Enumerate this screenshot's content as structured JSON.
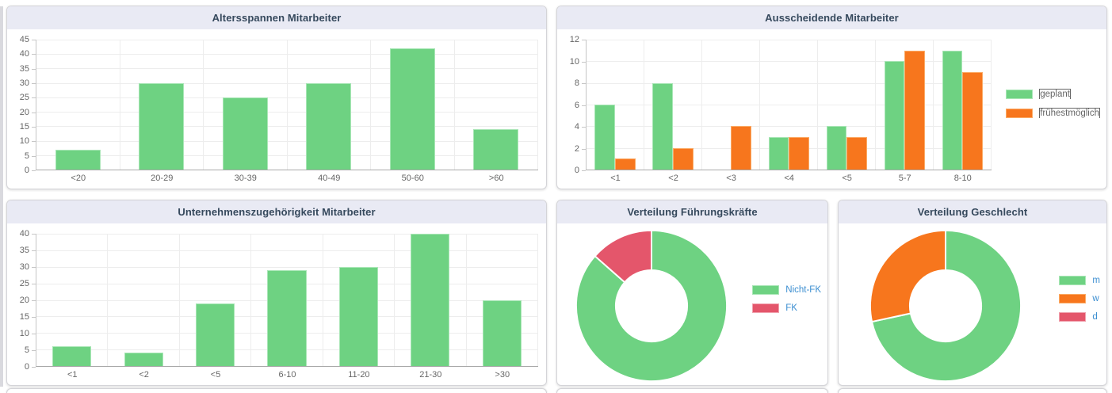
{
  "chart_data": [
    {
      "id": "age",
      "type": "bar",
      "title": "Altersspannen Mitarbeiter",
      "categories": [
        "<20",
        "20-29",
        "30-39",
        "40-49",
        "50-60",
        ">60"
      ],
      "values": [
        7,
        30,
        25,
        30,
        42,
        14
      ],
      "ylim": [
        0,
        45
      ],
      "yticks": [
        0,
        5,
        10,
        15,
        20,
        25,
        30,
        35,
        40,
        45
      ],
      "bar_color": "#6ed282",
      "grid": true,
      "legend": "none",
      "xlabel": "",
      "ylabel": ""
    },
    {
      "id": "leaving",
      "type": "bar",
      "title": "Ausscheidende Mitarbeiter",
      "categories": [
        "<1",
        "<2",
        "<3",
        "<4",
        "<5",
        "5-7",
        "8-10"
      ],
      "series": [
        {
          "name": "geplant",
          "color": "#6ed282",
          "values": [
            6,
            8,
            0,
            3,
            4,
            10,
            11
          ]
        },
        {
          "name": "frühestmöglich",
          "color": "#f7761d",
          "values": [
            1,
            2,
            4,
            3,
            3,
            11,
            9
          ]
        }
      ],
      "ylim": [
        0,
        12
      ],
      "yticks": [
        0,
        2,
        4,
        6,
        8,
        10,
        12
      ],
      "grid": true,
      "legend": "right",
      "xlabel": "",
      "ylabel": ""
    },
    {
      "id": "tenure",
      "type": "bar",
      "title": "Unternehmenszugehörigkeit Mitarbeiter",
      "categories": [
        "<1",
        "<2",
        "<5",
        "6-10",
        "11-20",
        "21-30",
        ">30"
      ],
      "values": [
        6,
        4,
        19,
        29,
        30,
        40,
        20
      ],
      "ylim": [
        0,
        40
      ],
      "yticks": [
        0,
        5,
        10,
        15,
        20,
        25,
        30,
        35,
        40
      ],
      "bar_color": "#6ed282",
      "grid": true,
      "legend": "none",
      "xlabel": "",
      "ylabel": ""
    },
    {
      "id": "leadership",
      "type": "pie",
      "donut": true,
      "title": "Verteilung Führungskräfte",
      "labels": [
        "Nicht-FK",
        "FK"
      ],
      "values": [
        128,
        20
      ],
      "colors": [
        "#6ed282",
        "#e4566b"
      ],
      "legend": "right"
    },
    {
      "id": "gender",
      "type": "pie",
      "donut": true,
      "title": "Verteilung Geschlecht",
      "labels": [
        "m",
        "w",
        "d"
      ],
      "values": [
        106,
        42,
        0
      ],
      "colors": [
        "#6ed282",
        "#f7761d",
        "#e4566b"
      ],
      "legend": "right"
    }
  ],
  "style": {
    "header_bg": "#e9eaf4",
    "title_color": "#36495d",
    "tick_color": "#666666",
    "grid_color": "#ededed",
    "pie_legend_text": "#3d8fd1",
    "bar_legend_text": "#666666",
    "border_colors": {
      "#6ed282": "#a9e6b6",
      "#f7761d": "#fbab66",
      "#e4566b": "#f0a2ae"
    }
  }
}
